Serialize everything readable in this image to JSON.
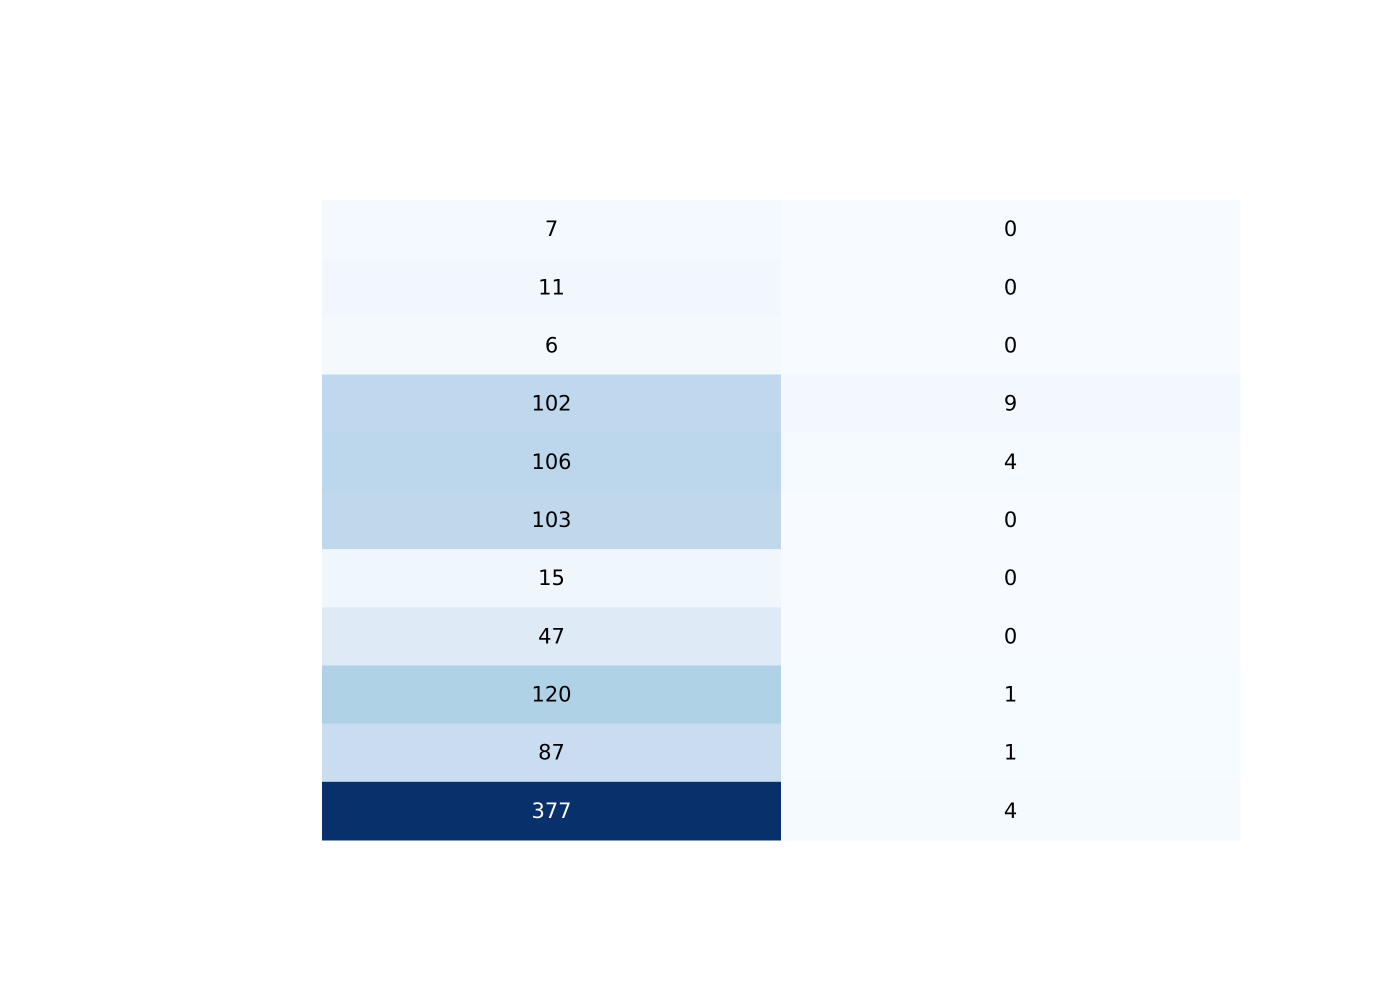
{
  "chart_data": {
    "type": "heatmap",
    "colorscale": "Blues",
    "zmin": 0,
    "zmax": 377,
    "columns": 2,
    "values": [
      [
        7,
        0
      ],
      [
        11,
        0
      ],
      [
        6,
        0
      ],
      [
        102,
        9
      ],
      [
        106,
        4
      ],
      [
        103,
        0
      ],
      [
        15,
        0
      ],
      [
        47,
        0
      ],
      [
        120,
        1
      ],
      [
        87,
        1
      ],
      [
        377,
        4
      ]
    ],
    "show_values": true
  }
}
